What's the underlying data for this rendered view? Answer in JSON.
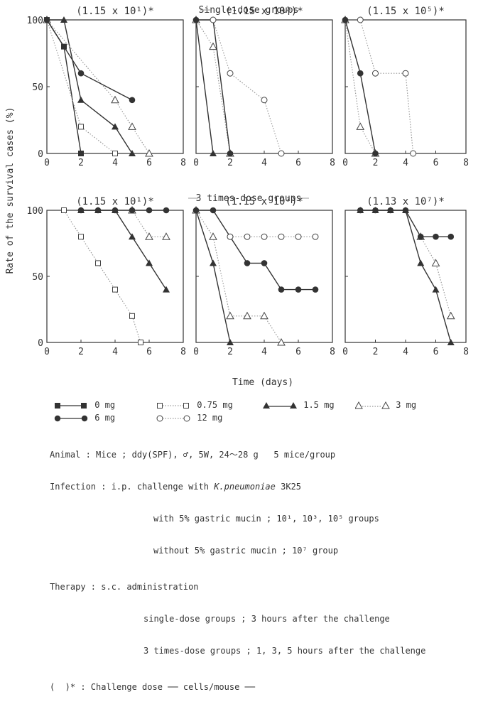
{
  "figure": {
    "ylabel": "Rate of the survival cases (%)",
    "xlabel": "Time (days)",
    "row_titles": [
      "Single-dose groups",
      "3 times-dose groups"
    ]
  },
  "colors": {
    "ink": "#333333",
    "dotted": "#999999"
  },
  "chart_data": [
    {
      "type": "line",
      "group": "Single-dose groups",
      "title": "(1.15 x 10¹)*",
      "xlim": [
        0,
        8
      ],
      "ylim": [
        0,
        100
      ],
      "xticks": [
        0,
        2,
        4,
        6,
        8
      ],
      "yticks": [
        0,
        50,
        100
      ],
      "grid": false,
      "series": [
        {
          "name": "0 mg",
          "marker": "square-filled",
          "line": "solid",
          "x": [
            0,
            1,
            2
          ],
          "y": [
            100,
            80,
            0
          ]
        },
        {
          "name": "0.75 mg",
          "marker": "square-open",
          "line": "dotted",
          "x": [
            0,
            2,
            4
          ],
          "y": [
            100,
            20,
            0
          ]
        },
        {
          "name": "1.5 mg",
          "marker": "triangle-filled",
          "line": "solid",
          "x": [
            0,
            1,
            2,
            4,
            5
          ],
          "y": [
            100,
            100,
            40,
            20,
            0
          ]
        },
        {
          "name": "3 mg",
          "marker": "triangle-open",
          "line": "dotted",
          "x": [
            0,
            4,
            5,
            6
          ],
          "y": [
            100,
            40,
            20,
            0
          ]
        },
        {
          "name": "6 mg",
          "marker": "circle-filled",
          "line": "solid",
          "x": [
            0,
            2,
            5
          ],
          "y": [
            100,
            60,
            40
          ]
        }
      ]
    },
    {
      "type": "line",
      "group": "Single-dose groups",
      "title": "(1.15 x 10³)*",
      "xlim": [
        0,
        8
      ],
      "ylim": [
        0,
        100
      ],
      "xticks": [
        0,
        2,
        4,
        6,
        8
      ],
      "yticks": [
        0,
        50,
        100
      ],
      "grid": false,
      "series": [
        {
          "name": "1.5 mg",
          "marker": "triangle-filled",
          "line": "solid",
          "x": [
            0,
            1
          ],
          "y": [
            100,
            0
          ]
        },
        {
          "name": "3 mg",
          "marker": "triangle-open",
          "line": "dotted",
          "x": [
            0,
            1,
            2
          ],
          "y": [
            100,
            80,
            0
          ]
        },
        {
          "name": "6 mg",
          "marker": "circle-filled",
          "line": "solid",
          "x": [
            0,
            1,
            2
          ],
          "y": [
            100,
            100,
            0
          ]
        },
        {
          "name": "12 mg",
          "marker": "circle-open",
          "line": "dotted",
          "x": [
            1,
            2,
            4,
            5
          ],
          "y": [
            100,
            60,
            40,
            0
          ]
        }
      ]
    },
    {
      "type": "line",
      "group": "Single-dose groups",
      "title": "(1.15 x 10⁵)*",
      "xlim": [
        0,
        8
      ],
      "ylim": [
        0,
        100
      ],
      "xticks": [
        0,
        2,
        4,
        6,
        8
      ],
      "yticks": [
        0,
        50,
        100
      ],
      "grid": false,
      "series": [
        {
          "name": "3 mg",
          "marker": "triangle-open",
          "line": "dotted",
          "x": [
            0,
            1,
            2
          ],
          "y": [
            100,
            20,
            0
          ]
        },
        {
          "name": "6 mg",
          "marker": "circle-filled",
          "line": "solid",
          "x": [
            0,
            1,
            2
          ],
          "y": [
            100,
            60,
            0
          ]
        },
        {
          "name": "12 mg",
          "marker": "circle-open",
          "line": "dotted",
          "x": [
            1,
            2,
            4,
            4.5
          ],
          "y": [
            100,
            60,
            60,
            0
          ]
        }
      ]
    },
    {
      "type": "line",
      "group": "3 times-dose groups",
      "title": "(1.15 x 10¹)*",
      "xlim": [
        0,
        8
      ],
      "ylim": [
        0,
        100
      ],
      "xticks": [
        0,
        2,
        4,
        6,
        8
      ],
      "yticks": [
        0,
        50,
        100
      ],
      "grid": false,
      "series": [
        {
          "name": "0.75 mg",
          "marker": "square-open",
          "line": "dotted",
          "x": [
            1,
            2,
            3,
            4,
            5,
            5.5
          ],
          "y": [
            100,
            80,
            60,
            40,
            20,
            0
          ]
        },
        {
          "name": "1.5 mg",
          "marker": "triangle-filled",
          "line": "solid",
          "x": [
            2,
            3,
            4,
            5,
            6,
            7
          ],
          "y": [
            100,
            100,
            100,
            80,
            60,
            40
          ]
        },
        {
          "name": "3 mg",
          "marker": "triangle-open",
          "line": "dotted",
          "x": [
            5,
            6,
            7
          ],
          "y": [
            100,
            80,
            80
          ]
        },
        {
          "name": "6 mg",
          "marker": "circle-filled",
          "line": "solid",
          "x": [
            2,
            3,
            4,
            5,
            6,
            7
          ],
          "y": [
            100,
            100,
            100,
            100,
            100,
            100
          ]
        }
      ]
    },
    {
      "type": "line",
      "group": "3 times-dose groups",
      "title": "(1.15 x 10³)*",
      "xlim": [
        0,
        8
      ],
      "ylim": [
        0,
        100
      ],
      "xticks": [
        0,
        2,
        4,
        6,
        8
      ],
      "yticks": [
        0,
        50,
        100
      ],
      "grid": false,
      "series": [
        {
          "name": "1.5 mg",
          "marker": "triangle-filled",
          "line": "solid",
          "x": [
            0,
            1,
            2
          ],
          "y": [
            100,
            60,
            0
          ]
        },
        {
          "name": "3 mg",
          "marker": "triangle-open",
          "line": "dotted",
          "x": [
            0,
            1,
            2,
            3,
            4,
            5
          ],
          "y": [
            100,
            80,
            20,
            20,
            20,
            0
          ]
        },
        {
          "name": "6 mg",
          "marker": "circle-filled",
          "line": "solid",
          "x": [
            0,
            1,
            2,
            3,
            4,
            5,
            6,
            7
          ],
          "y": [
            100,
            100,
            80,
            60,
            60,
            40,
            40,
            40
          ]
        },
        {
          "name": "12 mg",
          "marker": "circle-open",
          "line": "dotted",
          "x": [
            2,
            3,
            4,
            5,
            6,
            7
          ],
          "y": [
            80,
            80,
            80,
            80,
            80,
            80
          ]
        }
      ]
    },
    {
      "type": "line",
      "group": "3 times-dose groups",
      "title": "(1.13 x 10⁷)*",
      "xlim": [
        0,
        8
      ],
      "ylim": [
        0,
        100
      ],
      "xticks": [
        0,
        2,
        4,
        6,
        8
      ],
      "yticks": [
        0,
        50,
        100
      ],
      "grid": false,
      "series": [
        {
          "name": "1.5 mg",
          "marker": "triangle-filled",
          "line": "solid",
          "x": [
            1,
            2,
            3,
            4,
            5,
            6,
            7
          ],
          "y": [
            100,
            100,
            100,
            100,
            60,
            40,
            0
          ]
        },
        {
          "name": "3 mg",
          "marker": "triangle-open",
          "line": "dotted",
          "x": [
            5,
            6,
            7
          ],
          "y": [
            80,
            60,
            20
          ]
        },
        {
          "name": "6 mg",
          "marker": "circle-filled",
          "line": "solid",
          "x": [
            1,
            2,
            3,
            4,
            5,
            6,
            7
          ],
          "y": [
            100,
            100,
            100,
            100,
            80,
            80,
            80
          ]
        }
      ]
    }
  ],
  "legend": {
    "items": [
      {
        "label": "0 mg",
        "marker": "square-filled",
        "line": "solid"
      },
      {
        "label": "0.75 mg",
        "marker": "square-open",
        "line": "dotted"
      },
      {
        "label": "1.5 mg",
        "marker": "triangle-filled",
        "line": "solid"
      },
      {
        "label": "3 mg",
        "marker": "triangle-open",
        "line": "dotted"
      },
      {
        "label": "6 mg",
        "marker": "circle-filled",
        "line": "solid"
      },
      {
        "label": "12 mg",
        "marker": "circle-open",
        "line": "dotted"
      }
    ]
  },
  "notes": {
    "animal": "Animal : Mice ; ddy(SPF), ♂, 5W, 24～28 g   5 mice/group",
    "infection_prefix": "Infection : i.p. challenge with ",
    "organism": "K.pneumoniae",
    "infection_suffix": " 3K25",
    "infection_line2": "with 5% gastric mucin ; 10¹, 10³, 10⁵ groups",
    "infection_line3": "without 5% gastric mucin ; 10⁷ group",
    "therapy": "Therapy : s.c. administration",
    "therapy_line2": "single-dose groups ; 3 hours after the challenge",
    "therapy_line3": "3 times-dose groups ; 1, 3, 5 hours after the challenge",
    "footnote": "(  )* : Challenge dose ── cells/mouse ──"
  }
}
